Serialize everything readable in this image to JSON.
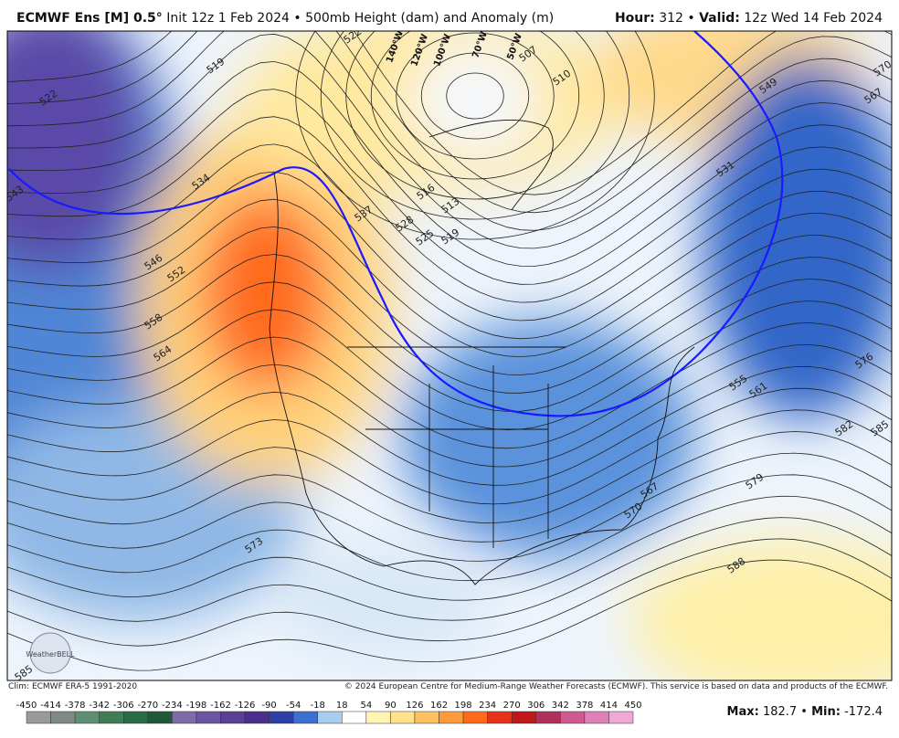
{
  "header": {
    "model": "ECMWF Ens [M] 0.5°",
    "description": " Init 12z 1 Feb 2024 • 500mb Height (dam) and Anomaly (m)",
    "hour_label": "Hour:",
    "hour": " 312 • ",
    "valid_label": "Valid:",
    "valid": " 12z Wed 14 Feb 2024"
  },
  "map": {
    "contour_labels": [
      "522",
      "519",
      "522",
      "543",
      "534",
      "546",
      "552",
      "558",
      "564",
      "537",
      "528",
      "525",
      "519",
      "513",
      "516",
      "510",
      "507",
      "549",
      "567",
      "570",
      "531",
      "555",
      "561",
      "576",
      "582",
      "585",
      "579",
      "567",
      "570",
      "573",
      "588",
      "585"
    ],
    "longitude_labels": [
      "140°W",
      "120°W",
      "100°W",
      "70°W",
      "50°W"
    ],
    "logo": "WeatherBELL"
  },
  "footer": {
    "climo": "Clim: ECMWF ERA-5 1991-2020",
    "copyright": "© 2024 European Centre for Medium-Range Weather Forecasts (ECMWF). This service is based on data and products of the ECMWF.",
    "max_label": "Max:",
    "max": " 182.7 • ",
    "min_label": "Min:",
    "min": " -172.4"
  },
  "colorbar": {
    "ticks": [
      -450,
      -414,
      -378,
      -342,
      -306,
      -270,
      -234,
      -198,
      -162,
      -126,
      -90,
      -54,
      -18,
      18,
      54,
      90,
      126,
      162,
      198,
      234,
      270,
      306,
      342,
      378,
      414,
      450
    ],
    "colors": [
      "#9a9a9a",
      "#7f8a86",
      "#5f8f72",
      "#3f7d55",
      "#2a6b45",
      "#1e5a3a",
      "#7d6aa8",
      "#6b55a0",
      "#5a3f98",
      "#4b2f8e",
      "#2f3fa8",
      "#3f6fd0",
      "#a9cdf0",
      "#ffffff",
      "#fff4b0",
      "#ffe28a",
      "#ffc060",
      "#ff9a3a",
      "#ff6a1a",
      "#e6321a",
      "#c01818",
      "#b0305a",
      "#d05a90",
      "#e080b8",
      "#f0a8d4"
    ]
  }
}
